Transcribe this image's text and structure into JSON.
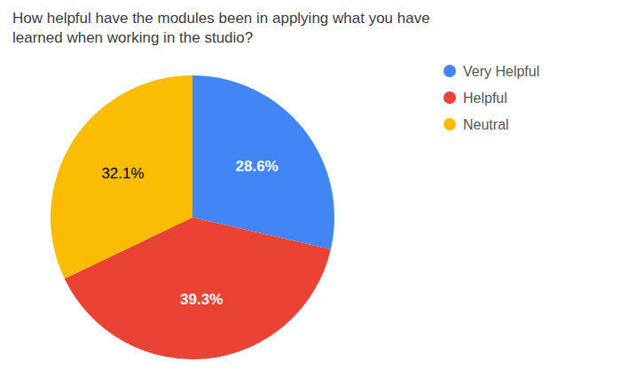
{
  "chart_data": {
    "type": "pie",
    "title": "How helpful have the modules been in applying what you have\nlearned when working in the studio?",
    "categories": [
      "Very Helpful",
      "Helpful",
      "Neutral"
    ],
    "values": [
      28.6,
      39.3,
      32.1
    ],
    "value_labels": [
      "28.6%",
      "39.3%",
      "32.1%"
    ],
    "colors": [
      "#4285F4",
      "#EA4335",
      "#FBBC04"
    ],
    "data_labels": true,
    "legend": "right"
  }
}
